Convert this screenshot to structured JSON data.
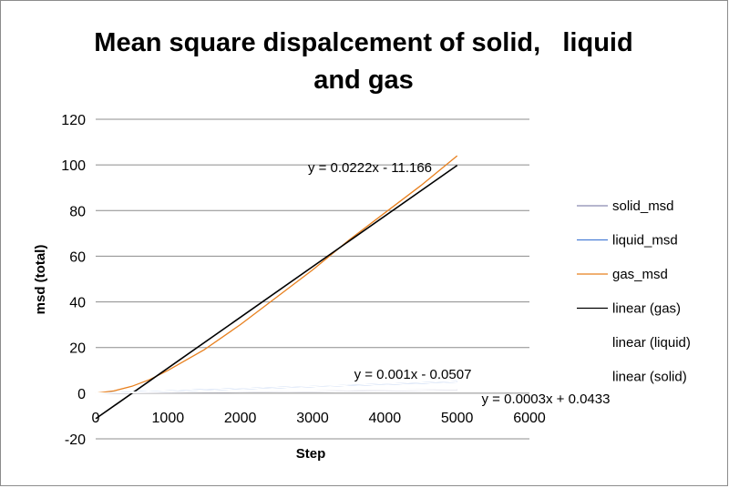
{
  "chart_data": {
    "type": "line",
    "title_line1": "Mean square dispalcement of solid,   liquid",
    "title_line2": "and gas",
    "xlabel": "Step",
    "ylabel": "msd (total)",
    "xlim": [
      0,
      6000
    ],
    "ylim": [
      -20,
      120
    ],
    "x_ticks": [
      0,
      1000,
      2000,
      3000,
      4000,
      5000,
      6000
    ],
    "y_ticks": [
      -20,
      0,
      20,
      40,
      60,
      80,
      100,
      120
    ],
    "grid": "horizontal",
    "legend_position": "right",
    "series": [
      {
        "name": "solid_msd",
        "color": "#8a8ab0",
        "x": [
          0,
          500,
          1000,
          1500,
          2000,
          2500,
          3000,
          3500,
          4000,
          4500,
          5000
        ],
        "y": [
          0,
          0.15,
          0.3,
          0.45,
          0.6,
          0.75,
          0.9,
          1.05,
          1.2,
          1.35,
          1.5
        ]
      },
      {
        "name": "liquid_msd",
        "color": "#4a7fd6",
        "x": [
          0,
          500,
          1000,
          1500,
          2000,
          2500,
          3000,
          3500,
          4000,
          4500,
          5000
        ],
        "y": [
          0,
          0.45,
          0.95,
          1.45,
          1.95,
          2.45,
          2.95,
          3.45,
          3.95,
          4.45,
          4.95
        ]
      },
      {
        "name": "gas_msd",
        "color": "#e8801e",
        "x": [
          0,
          250,
          500,
          750,
          1000,
          1500,
          2000,
          2500,
          3000,
          3500,
          4000,
          4500,
          5000
        ],
        "y": [
          0,
          1,
          3,
          6,
          10,
          19,
          30,
          42,
          54,
          67,
          79,
          91,
          104
        ]
      },
      {
        "name": "linear (gas)",
        "color": "#000000",
        "x": [
          0,
          5000
        ],
        "y": [
          -11.166,
          99.834
        ]
      },
      {
        "name": "linear (liquid)",
        "color": "#ffffff",
        "x": [
          0,
          5000
        ],
        "y": [
          -0.0507,
          4.9493
        ]
      },
      {
        "name": "linear (solid)",
        "color": "#ffffff",
        "x": [
          0,
          5000
        ],
        "y": [
          0.0433,
          1.5433
        ]
      }
    ],
    "annotations": {
      "gas_eq": "y = 0.0222x - 11.166",
      "liquid_eq": "y = 0.001x - 0.0507",
      "solid_eq": "y = 0.0003x + 0.0433"
    }
  }
}
